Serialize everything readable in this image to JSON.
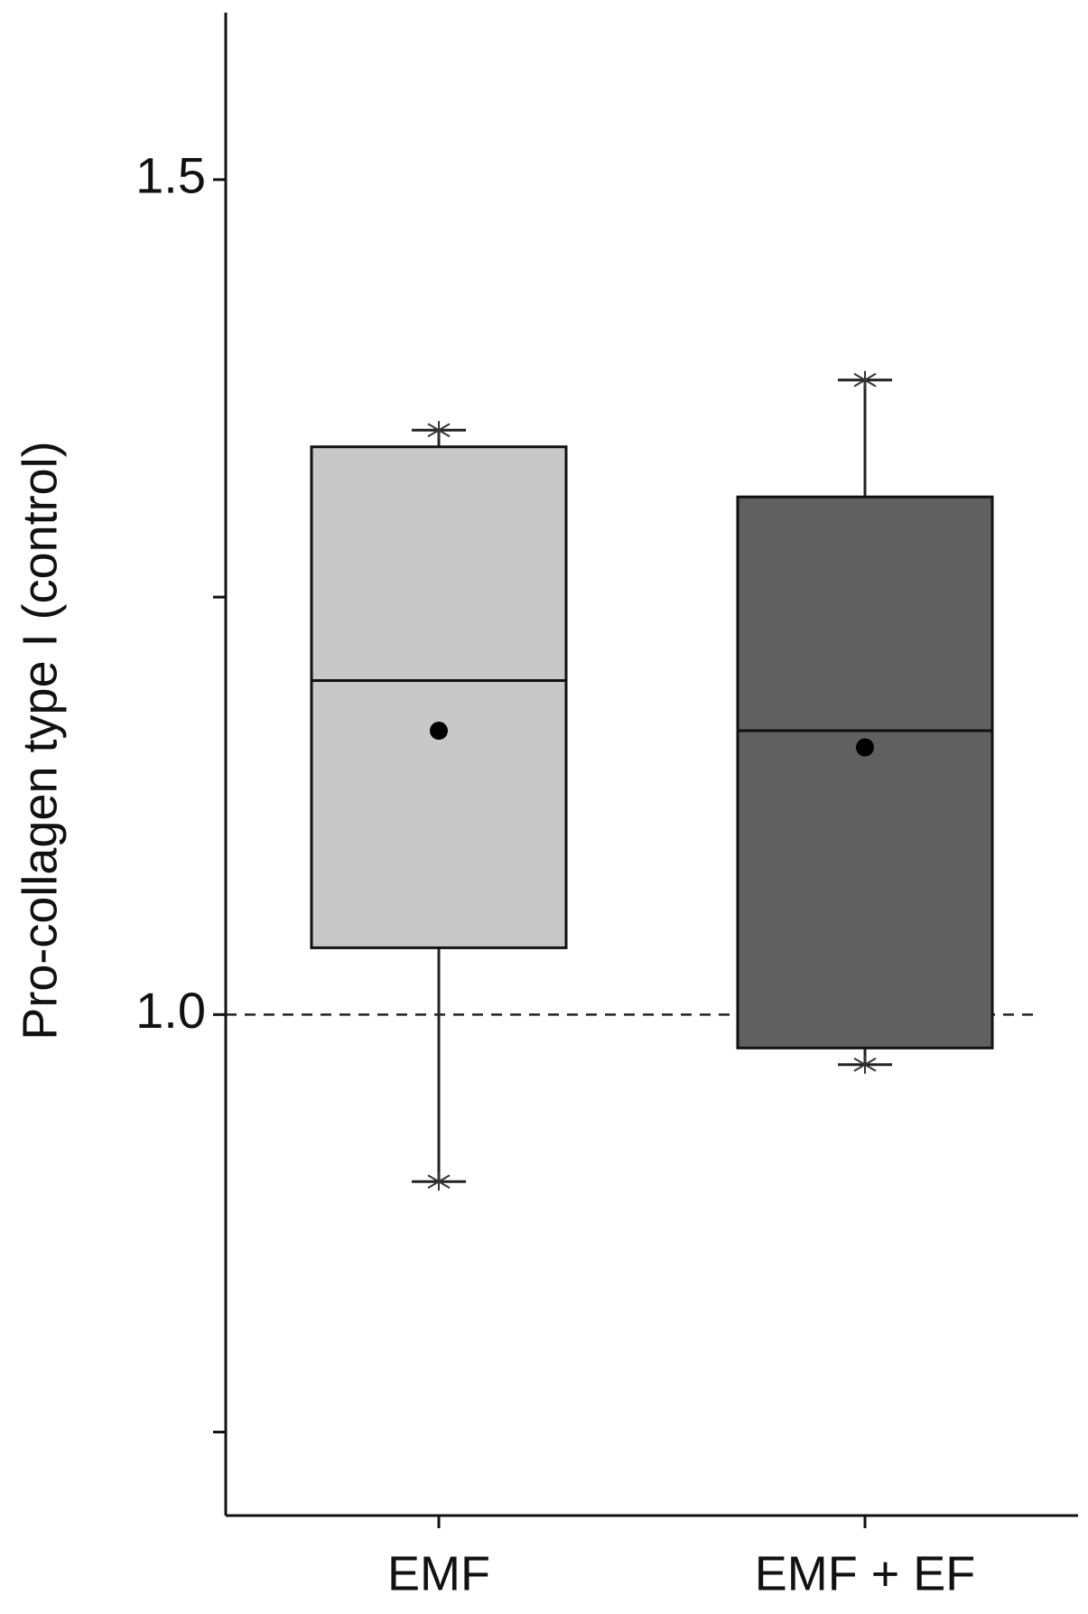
{
  "chart_data": {
    "type": "box",
    "y_label": "Pro-collagen type I (control)",
    "categories": [
      "EMF",
      "EMF + EF"
    ],
    "series": [
      {
        "name": "EMF",
        "color": "#c8c8c8",
        "whisker_low": 0.9,
        "q1": 1.04,
        "median": 1.2,
        "mean": 1.17,
        "q3": 1.34,
        "whisker_high": 1.35
      },
      {
        "name": "EMF + EF",
        "color": "#606060",
        "whisker_low": 0.97,
        "q1": 0.98,
        "median": 1.17,
        "mean": 1.16,
        "q3": 1.31,
        "whisker_high": 1.38
      }
    ],
    "reference_line": 1.0,
    "ylim": [
      0.7,
      1.6
    ],
    "yticks": [
      {
        "value": 1.0,
        "label": "1.0"
      },
      {
        "value": 1.5,
        "label": "1.5"
      }
    ],
    "minor_yticks": [
      0.75,
      1.25
    ]
  }
}
